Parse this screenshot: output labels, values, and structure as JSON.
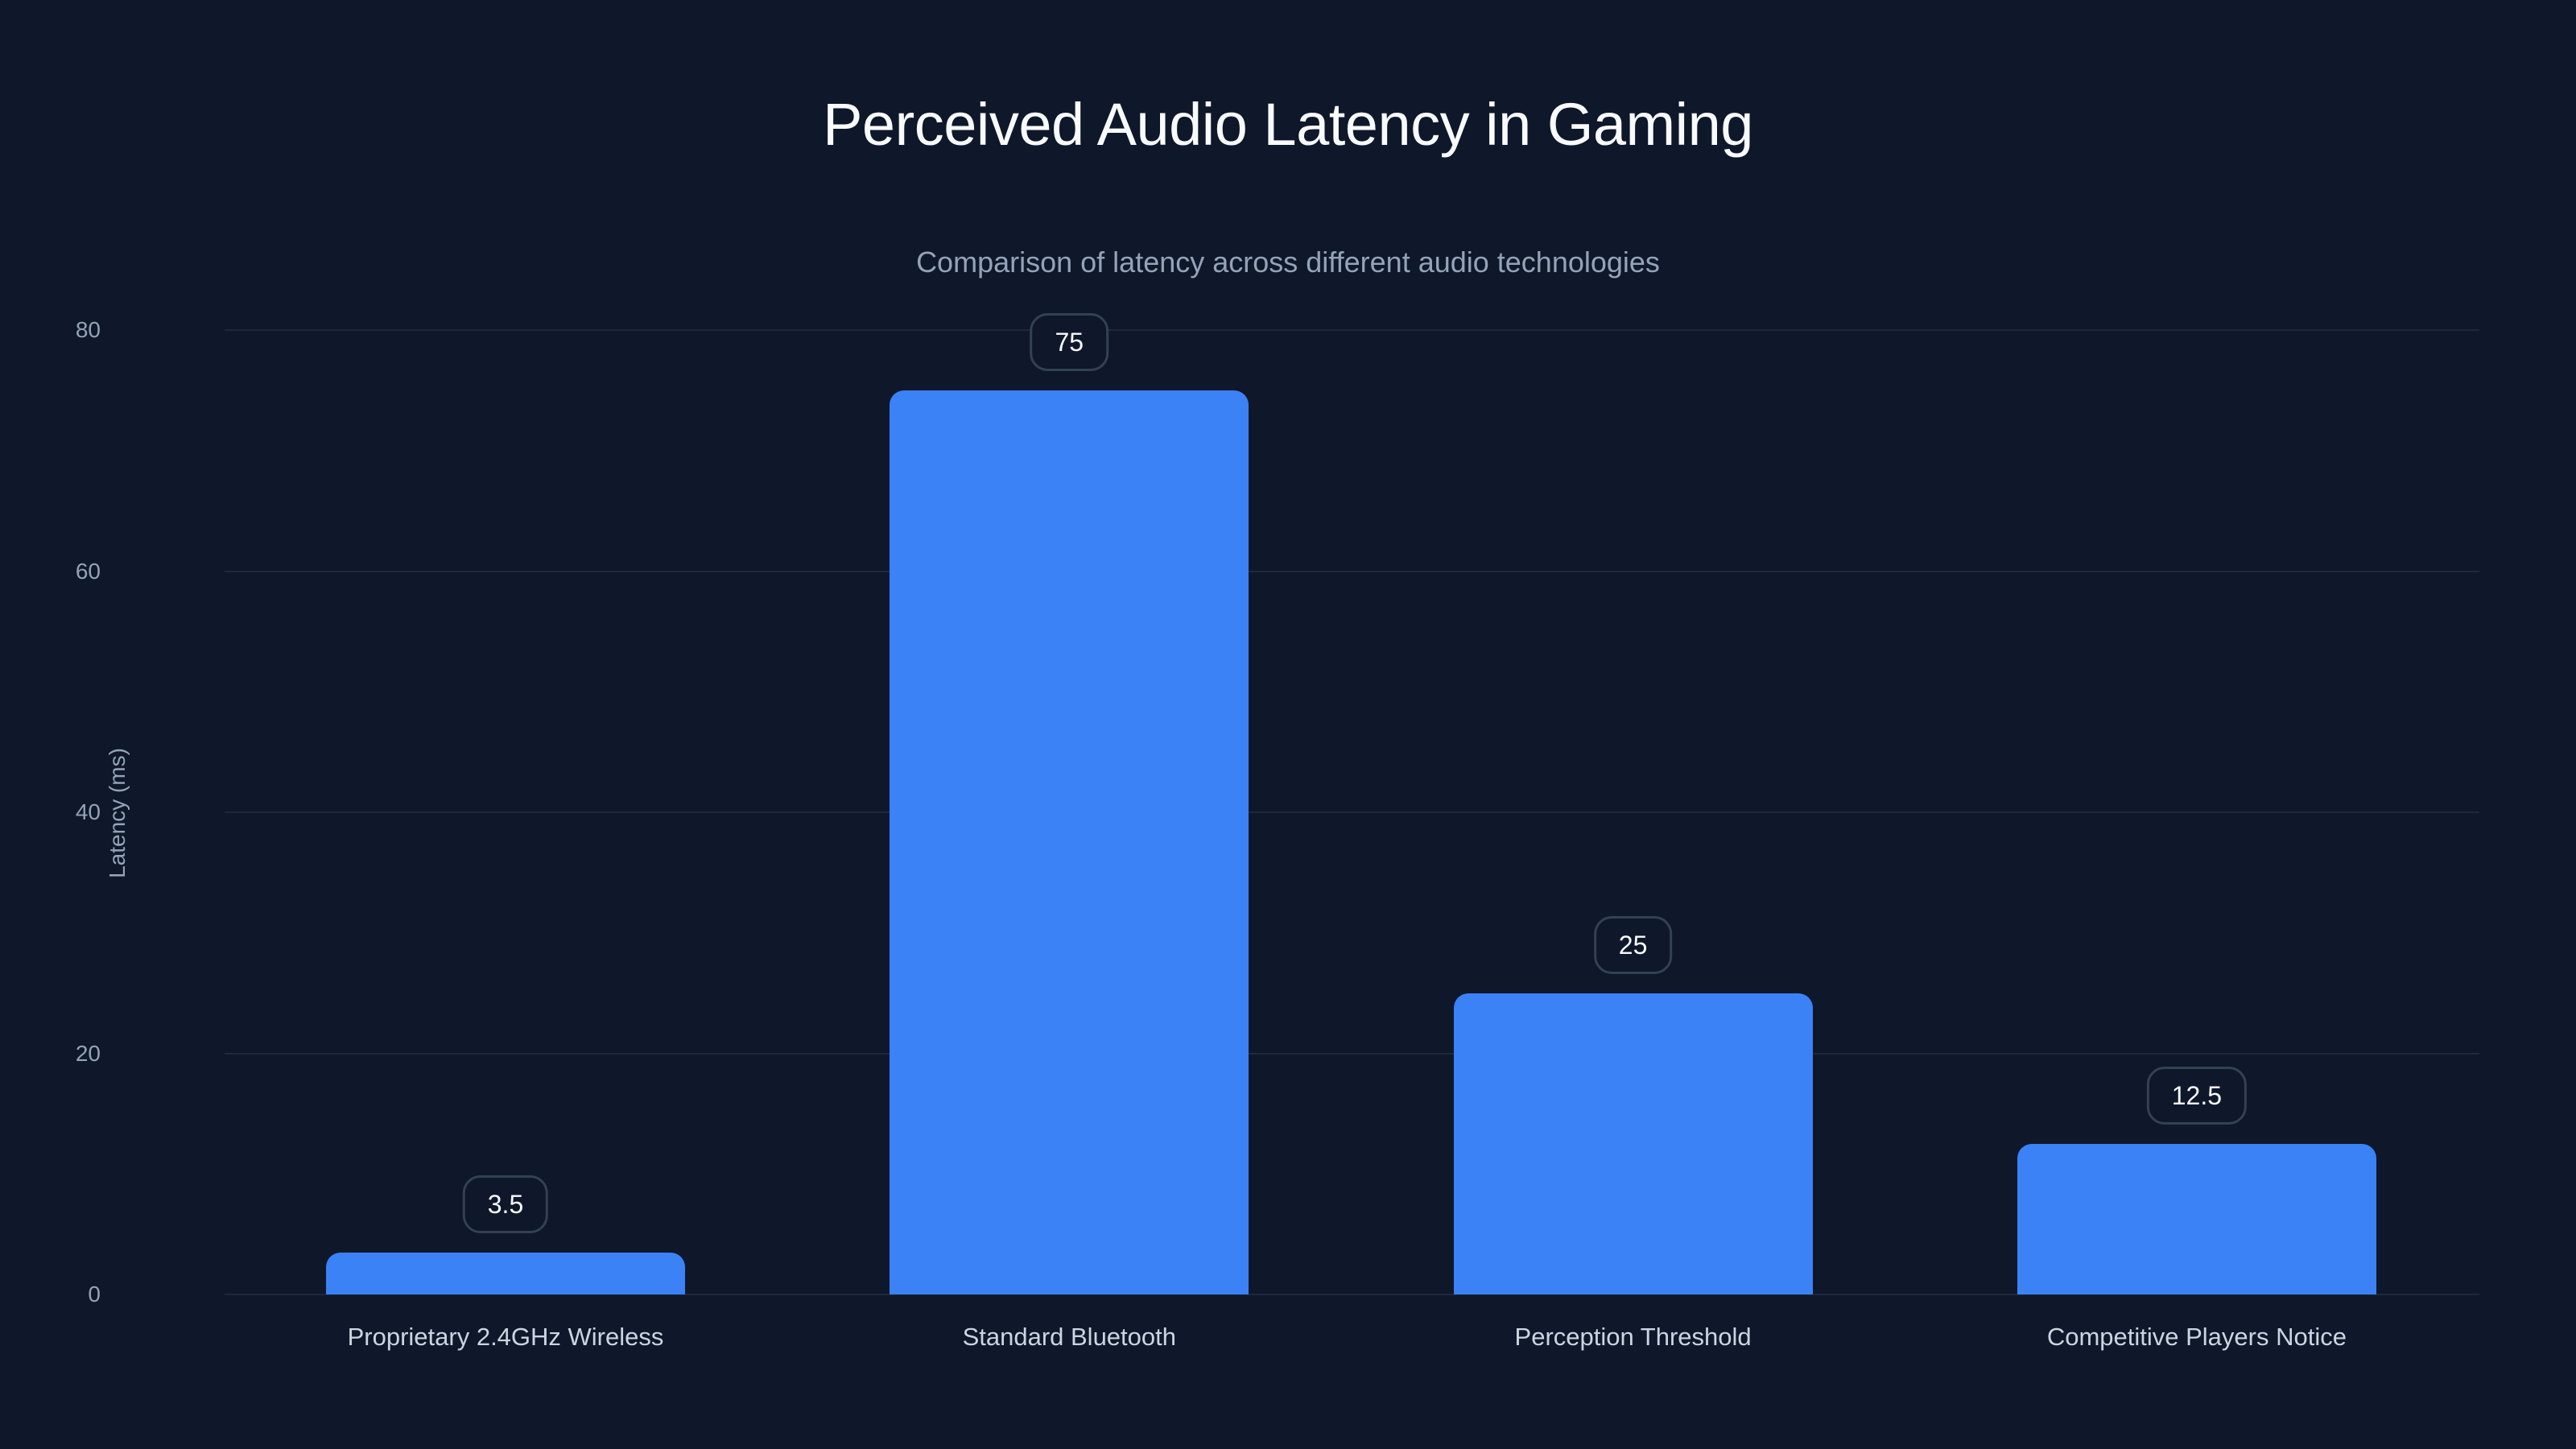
{
  "header": {
    "title": "Perceived Audio Latency in Gaming",
    "subtitle": "Comparison of latency across different audio technologies"
  },
  "axes": {
    "ylabel": "Latency (ms)",
    "yticks": [
      "0",
      "20",
      "40",
      "60",
      "80"
    ]
  },
  "colors": {
    "background": "#0f172a",
    "bar": "#3b82f6",
    "grid": "#1e293b",
    "label_border": "#334155"
  },
  "bars": [
    {
      "label": "Proprietary 2.4GHz Wireless",
      "value": "3.5"
    },
    {
      "label": "Standard Bluetooth",
      "value": "75"
    },
    {
      "label": "Perception Threshold",
      "value": "25"
    },
    {
      "label": "Competitive Players Notice",
      "value": "12.5"
    }
  ],
  "chart_data": {
    "type": "bar",
    "title": "Perceived Audio Latency in Gaming",
    "subtitle": "Comparison of latency across different audio technologies",
    "categories": [
      "Proprietary 2.4GHz Wireless",
      "Standard Bluetooth",
      "Perception Threshold",
      "Competitive Players Notice"
    ],
    "values": [
      3.5,
      75,
      25,
      12.5
    ],
    "xlabel": "",
    "ylabel": "Latency (ms)",
    "ylim": [
      0,
      80
    ],
    "yticks": [
      0,
      20,
      40,
      60,
      80
    ],
    "grid": true,
    "data_labels": true,
    "legend": null
  }
}
